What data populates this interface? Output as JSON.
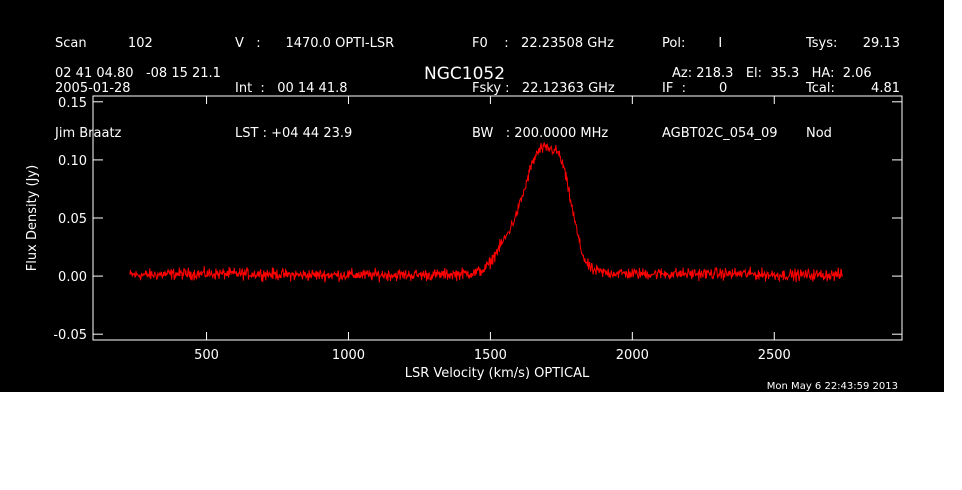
{
  "header": {
    "col1": [
      "Scan          102",
      "2005-01-28",
      "Jim Braatz"
    ],
    "col2": [
      "V   :      1470.0 OPTI-LSR",
      "Int  :   00 14 41.8",
      "LST : +04 44 23.9"
    ],
    "col3": [
      "F0    :   22.23508 GHz",
      "Fsky :   22.12363 GHz",
      "BW   : 200.0000 MHz"
    ],
    "col4": [
      "Pol:        I",
      "IF  :        0",
      "AGBT02C_054_09"
    ],
    "col5": [
      "Tsys:",
      "Tcal:",
      "Nod"
    ],
    "col6": [
      "29.13",
      "4.81",
      ""
    ],
    "coords": "02 41 04.80   -08 15 21.1",
    "azel": "Az: 218.3   El:  35.3   HA:  2.06"
  },
  "timestamp": "Mon May  6 22:43:59 2013",
  "colors": {
    "background": "#000000",
    "foreground": "#ffffff",
    "series": "#ff0000"
  },
  "chart_data": {
    "type": "line",
    "title": "NGC1052",
    "xlabel": "LSR Velocity (km/s) OPTICAL",
    "ylabel": "Flux Density (Jy)",
    "xlim": [
      100,
      2950
    ],
    "ylim": [
      -0.055,
      0.155
    ],
    "x_ticks": [
      500,
      1000,
      1500,
      2000,
      2500
    ],
    "x_tick_labels": [
      "500",
      "1000",
      "1500",
      "2000",
      "2500"
    ],
    "y_ticks": [
      -0.05,
      0.0,
      0.05,
      0.1,
      0.15
    ],
    "y_tick_labels": [
      "-0.05",
      "0.00",
      "0.05",
      "0.10",
      "0.15"
    ],
    "grid": false,
    "series": [
      {
        "x": [
          230,
          300,
          400,
          500,
          600,
          700,
          800,
          900,
          1000,
          1100,
          1200,
          1300,
          1400,
          1450,
          1480,
          1500,
          1530,
          1560,
          1590,
          1620,
          1640,
          1660,
          1680,
          1700,
          1720,
          1740,
          1760,
          1780,
          1800,
          1820,
          1840,
          1860,
          1900,
          2000,
          2100,
          2200,
          2300,
          2400,
          2500,
          2600,
          2700,
          2740
        ],
        "y": [
          0.001,
          0.001,
          0.002,
          0.002,
          0.002,
          0.002,
          0.001,
          0.001,
          0.001,
          0.001,
          0.001,
          0.001,
          0.002,
          0.003,
          0.006,
          0.012,
          0.024,
          0.036,
          0.052,
          0.074,
          0.092,
          0.104,
          0.11,
          0.11,
          0.109,
          0.106,
          0.092,
          0.068,
          0.044,
          0.022,
          0.01,
          0.005,
          0.003,
          0.002,
          0.002,
          0.002,
          0.002,
          0.002,
          0.001,
          0.001,
          0.001,
          0.001
        ]
      }
    ]
  }
}
